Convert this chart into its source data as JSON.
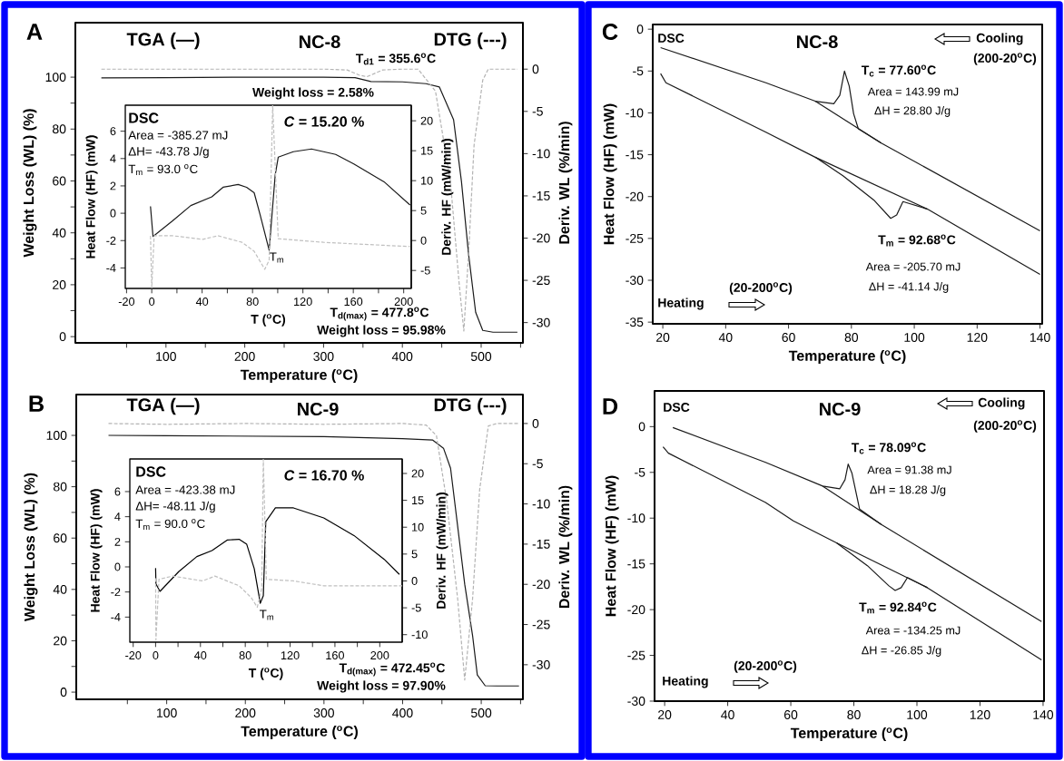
{
  "chart_data": [
    {
      "type": "line",
      "title": "A",
      "xlabel": "Temperature ($^{o}$C)",
      "ylabel": "Weight Loss (WL) (%)",
      "y2label": "Deriv. WL (%/min)",
      "xlim": [
        -15,
        553
      ],
      "ylim": [
        -2.4,
        121
      ],
      "y2lim": [
        -32.4,
        5.5
      ],
      "xticks": [
        {
          "value": 50,
          "label": null
        },
        100,
        {
          "value": 150,
          "label": null
        },
        200,
        {
          "value": 250,
          "label": null
        },
        300,
        {
          "value": 350,
          "label": null
        },
        400,
        {
          "value": 450,
          "label": null
        },
        500,
        {
          "value": 550,
          "label": null
        }
      ],
      "yticks": [
        0,
        {
          "value": 10,
          "label": null
        },
        20,
        {
          "value": 30,
          "label": null
        },
        40,
        {
          "value": 50,
          "label": null
        },
        60,
        {
          "value": 70,
          "label": null
        },
        80,
        {
          "value": 90,
          "label": null
        },
        100
      ],
      "y2ticks": [
        -30,
        -25,
        -20,
        -15,
        -10,
        -5,
        0
      ],
      "annotations": [
        "TGA (—)",
        "NC-8",
        "DTG (---)",
        "T$_{d1}$ = 355.6$^{o}$C",
        "Weight loss = 2.58%",
        "T$_{d(max)}$ = 477.8$^{o}$C",
        "Weight loss = 95.98%"
      ],
      "series": [
        {
          "color": "#1a1a1a",
          "line_style": "solid",
          "x": [
            18,
            100,
            200,
            300,
            340,
            360,
            400,
            430,
            447,
            465,
            475,
            484,
            493,
            502,
            515,
            546
          ],
          "values": [
            99.7,
            99.8,
            100,
            100,
            99.8,
            98.3,
            98.2,
            97.5,
            96.2,
            83.6,
            59.8,
            31.8,
            9.4,
            2.4,
            1.7,
            1.7
          ]
        },
        {
          "color": "#b3b3b3",
          "line_style": "dashed",
          "axis": "y2",
          "x": [
            18,
            100,
            200,
            300,
            330,
            345,
            355,
            365,
            375,
            400,
            420,
            442,
            461,
            472,
            478,
            484,
            491,
            502,
            509,
            546
          ],
          "values": [
            0,
            0,
            0,
            0,
            -0.1,
            -0.7,
            -0.9,
            -0.5,
            -0.1,
            0,
            0,
            -2.6,
            -13.3,
            -25.3,
            -31,
            -21.9,
            -9,
            -1.3,
            0,
            0
          ]
        }
      ]
    },
    {
      "type": "line",
      "xlabel": "T ($^{o}$C)",
      "ylabel": "Heat Flow (HF) (mW)",
      "y2label": "Deriv. HF (mW/min)",
      "xlim": [
        -21,
        206
      ],
      "ylim": [
        -5.5,
        7.9
      ],
      "y2lim": [
        -8,
        22.6
      ],
      "xticks": [
        -20,
        0,
        {
          "value": 20,
          "label": null
        },
        40,
        {
          "value": 60,
          "label": null
        },
        80,
        {
          "value": 100,
          "label": null
        },
        120,
        {
          "value": 140,
          "label": null
        },
        160,
        {
          "value": 180,
          "label": null
        },
        200
      ],
      "yticks": [
        -4,
        -2,
        0,
        2,
        4,
        6
      ],
      "y2ticks": [
        -5,
        0,
        5,
        10,
        15,
        20
      ],
      "annotations": [
        "DSC",
        "Area = -385.27 mJ",
        "ΔH= -43.78 J/g",
        "T$_{m}$ = 93.0 $^{o}$C",
        "*C* = 15.20 %",
        "T$_{m}$"
      ],
      "series": [
        {
          "color": "#1a1a1a",
          "line_style": "solid",
          "x": [
            -1,
            1,
            16.5,
            31,
            47.7,
            56.6,
            68.6,
            75.3,
            81.3,
            86,
            93.2,
            98,
            100.4,
            112.4,
            126.8,
            146,
            160.4,
            184.4,
            205
          ],
          "values": [
            0.5,
            -1.7,
            -0.56,
            0.56,
            1.2,
            1.9,
            2.1,
            1.9,
            1.5,
            -0.1,
            -2.7,
            2.8,
            4.1,
            4.5,
            4.7,
            4.3,
            3.6,
            2.3,
            0.6
          ]
        },
        {
          "color": "#c0c0c0",
          "line_style": "dashed",
          "axis": "y2",
          "x": [
            -1,
            0,
            1.9,
            16.5,
            40.5,
            52.5,
            71.7,
            81.3,
            89.7,
            93.2,
            96,
            100.4,
            136.4,
            184.4,
            205
          ],
          "values": [
            0.8,
            -7.9,
            0.8,
            0.8,
            0.2,
            0.8,
            -0.3,
            -1.8,
            -4.8,
            -3.3,
            22.6,
            0.3,
            -0.3,
            -0.8,
            -1
          ]
        }
      ]
    },
    {
      "type": "line",
      "title": "C",
      "xlabel": "Temperature ($^{o}$C)",
      "ylabel": "Heat Flow (HF) (mW)",
      "xlim": [
        16.8,
        140.7
      ],
      "ylim": [
        -35.2,
        0.56
      ],
      "xticks": [
        20,
        40,
        60,
        80,
        100,
        120,
        140
      ],
      "yticks": [
        -35,
        -30,
        -25,
        -20,
        -15,
        -10,
        -5,
        0
      ],
      "annotations": [
        "DSC",
        "NC-8",
        "Cooling",
        "(200-20$^{o}$C)",
        "T$_{c}$ = 77.60$^{o}$C",
        "Area = 143.99 mJ",
        "ΔH = 28.80 J/g",
        "T$_{m}$ = 92.68$^{o}$C",
        "Area = -205.70 mJ",
        "ΔH = -41.14 J/g",
        "(20-200$^{o}$C)",
        "Heating"
      ],
      "series": [
        {
          "color": "#1a1a1a",
          "line_style": "solid",
          "x": [
            19.3,
            52.8,
            68.5,
            74.4,
            76.3,
            77.8,
            79.3,
            80.7,
            82.2,
            89.5,
            140
          ],
          "values": [
            -2.2,
            -6.4,
            -8.6,
            -8.9,
            -7.9,
            -5.0,
            -6.8,
            -10.1,
            -11.9,
            -13.6,
            -24.1
          ]
        },
        {
          "color": "#1a1a1a",
          "line_style": "solid",
          "x": [
            68.5,
            89.5
          ],
          "values": [
            -8.6,
            -13.6
          ]
        },
        {
          "color": "#1a1a1a",
          "line_style": "solid",
          "x": [
            19.3,
            21,
            52.8,
            68.5,
            77.3,
            87.1,
            92.5,
            94.4,
            96.4,
            104.2,
            140
          ],
          "values": [
            -5.3,
            -6.4,
            -12.3,
            -15.3,
            -17.5,
            -20.4,
            -22.6,
            -22.2,
            -20.6,
            -21.5,
            -29.3
          ]
        },
        {
          "color": "#1a1a1a",
          "line_style": "solid",
          "x": [
            68.5,
            104.2
          ],
          "values": [
            -15.3,
            -21.5
          ]
        }
      ]
    },
    {
      "type": "line",
      "title": "B",
      "xlabel": "Temperature ($^{o}$C)",
      "ylabel": "Weight Loss (WL) (%)",
      "y2label": "Deriv. WL (%/min)",
      "xlim": [
        -15,
        553
      ],
      "ylim": [
        -2.8,
        115.9
      ],
      "y2lim": [
        -34.3,
        3.6
      ],
      "xticks": [
        {
          "value": 50,
          "label": null
        },
        100,
        {
          "value": 150,
          "label": null
        },
        200,
        {
          "value": 250,
          "label": null
        },
        300,
        {
          "value": 350,
          "label": null
        },
        400,
        {
          "value": 450,
          "label": null
        },
        500,
        {
          "value": 550,
          "label": null
        }
      ],
      "yticks": [
        0,
        {
          "value": 10,
          "label": null
        },
        20,
        {
          "value": 30,
          "label": null
        },
        40,
        {
          "value": 50,
          "label": null
        },
        60,
        {
          "value": 70,
          "label": null
        },
        80,
        {
          "value": 90,
          "label": null
        },
        100
      ],
      "y2ticks": [
        -30,
        -25,
        -20,
        -15,
        -10,
        -5,
        0
      ],
      "annotations": [
        "TGA (—)",
        "NC-9",
        "DTG (---)",
        "T$_{d(max)}$ = 472.45$^{o}$C",
        "Weight loss = 97.90%"
      ],
      "series": [
        {
          "color": "#1a1a1a",
          "line_style": "solid",
          "x": [
            26,
            100,
            200,
            300,
            400,
            438,
            452,
            461,
            470,
            479,
            489,
            495,
            505,
            520,
            548
          ],
          "values": [
            100,
            99.9,
            99.7,
            99.5,
            98.7,
            98.2,
            95,
            87.2,
            64.6,
            42,
            22,
            6.7,
            2.5,
            2.4,
            2.4
          ]
        },
        {
          "color": "#b3b3b3",
          "line_style": "dashed",
          "axis": "y2",
          "x": [
            26,
            100,
            200,
            300,
            400,
            430,
            443,
            456,
            470,
            479,
            489,
            498,
            509,
            520,
            548
          ],
          "values": [
            0,
            -0.1,
            0,
            -0.1,
            0,
            -0.2,
            -1.5,
            -9.6,
            -21.8,
            -31.9,
            -21.8,
            -8.2,
            -0.3,
            0,
            0
          ]
        }
      ]
    },
    {
      "type": "line",
      "xlabel": "T ($^{o}$C)",
      "ylabel": "Heat Flow (HF) (mW)",
      "y2label": "Deriv. HF (mW/min)",
      "xlim": [
        -23,
        220
      ],
      "ylim": [
        -6,
        8.6
      ],
      "y2lim": [
        -11.4,
        22.7
      ],
      "xticks": [
        -20,
        0,
        {
          "value": 20,
          "label": null
        },
        40,
        {
          "value": 60,
          "label": null
        },
        80,
        {
          "value": 100,
          "label": null
        },
        120,
        {
          "value": 140,
          "label": null
        },
        160,
        {
          "value": 180,
          "label": null
        },
        200
      ],
      "yticks": [
        -4,
        -2,
        0,
        2,
        4,
        6
      ],
      "y2ticks": [
        -10,
        -5,
        0,
        5,
        10,
        15,
        20
      ],
      "annotations": [
        "DSC",
        "Area = -423.38 mJ",
        "ΔH= -48.11 J/g",
        "T$_{m}$ = 90.0 $^{o}$C",
        "*C* = 16.70 %",
        "T$_{m}$"
      ],
      "series": [
        {
          "color": "#000000",
          "line_style": "solid",
          "x": [
            0,
            0.3,
            3.9,
            20.6,
            36.8,
            50.3,
            63.8,
            74.5,
            81.3,
            88,
            93.4,
            96.1,
            98.3,
            106.9,
            123,
            150,
            177,
            204,
            217.5
          ],
          "values": [
            -0.1,
            -1.35,
            -1.95,
            -0.38,
            0.82,
            1.3,
            2.14,
            2.2,
            1.8,
            -0.14,
            -2.9,
            -2.3,
            3.6,
            4.7,
            4.7,
            3.9,
            2.5,
            0.6,
            -0.6
          ]
        },
        {
          "color": "#c0c0c0",
          "line_style": "dashed",
          "axis": "y2",
          "x": [
            0,
            0.3,
            3,
            15.1,
            42,
            52.9,
            74.5,
            85.3,
            90.7,
            94.7,
            96.1,
            98.8,
            123,
            150,
            220
          ],
          "values": [
            0.5,
            -11,
            0.3,
            0.9,
            0,
            0.9,
            -0.9,
            -3.1,
            -4.9,
            -1.4,
            22.7,
            0.3,
            0,
            -0.9,
            -0.9
          ]
        }
      ]
    },
    {
      "type": "line",
      "title": "D",
      "xlabel": "Temperature ($^{o}$C)",
      "ylabel": "Heat Flow (HF) (mW)",
      "xlim": [
        16.8,
        140.3
      ],
      "ylim": [
        -30,
        3.9
      ],
      "xticks": [
        20,
        40,
        60,
        80,
        100,
        120,
        140
      ],
      "yticks": [
        -30,
        -25,
        -20,
        -15,
        -10,
        -5,
        0
      ],
      "annotations": [
        "DSC",
        "NC-9",
        "Cooling",
        "(200-20$^{o}$C)",
        "T$_{c}$ = 78.09$^{o}$C",
        "Area = 91.38 mJ",
        "ΔH = 18.28 J/g",
        "T$_{m}$ = 92.84$^{o}$C",
        "Area = -134.25 mJ",
        "ΔH = -26.85 J/g",
        "(20-200$^{o}$C)",
        "Heating"
      ],
      "series": [
        {
          "color": "#1a1a1a",
          "line_style": "solid",
          "x": [
            22.6,
            52,
            70.1,
            75.5,
            77.2,
            78.2,
            79.4,
            81.8,
            88.7,
            139.5
          ],
          "values": [
            -0.1,
            -3.9,
            -6.5,
            -6.8,
            -5.8,
            -4.1,
            -5.1,
            -9.0,
            -10.7,
            -21.3
          ]
        },
        {
          "color": "#1a1a1a",
          "line_style": "solid",
          "x": [
            70.1,
            88.7
          ],
          "values": [
            -6.5,
            -10.7
          ]
        },
        {
          "color": "#1a1a1a",
          "line_style": "solid",
          "x": [
            19.5,
            21.2,
            52,
            60.8,
            74.5,
            84.3,
            91.1,
            93.1,
            95,
            97,
            103.3,
            139.5
          ],
          "values": [
            -2.2,
            -2.9,
            -8.3,
            -10.3,
            -12.7,
            -15.2,
            -17.4,
            -17.9,
            -17.6,
            -16.5,
            -17.6,
            -25.5
          ]
        },
        {
          "color": "#1a1a1a",
          "line_style": "solid",
          "x": [
            74.5,
            103.3
          ],
          "values": [
            -12.7,
            -17.6
          ]
        }
      ]
    }
  ]
}
